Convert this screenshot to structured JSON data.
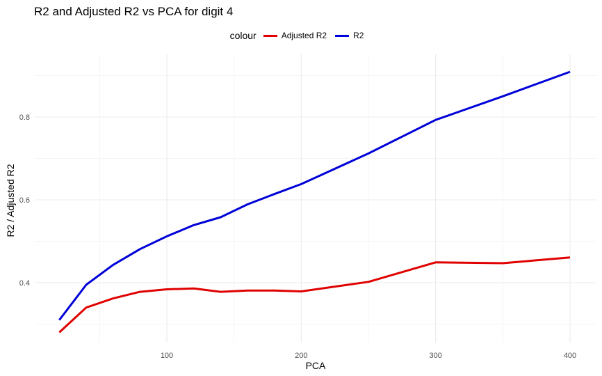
{
  "chart_data": {
    "type": "line",
    "title": "R2 and Adjusted R2 vs PCA for digit 4",
    "xlabel": "PCA",
    "ylabel": "R2 / Adjusted R2",
    "xlim": [
      20,
      400
    ],
    "ylim": [
      0.28,
      0.91
    ],
    "x_ticks": [
      100,
      200,
      300,
      400
    ],
    "y_ticks": [
      0.4,
      0.6,
      0.8
    ],
    "grid": true,
    "legend": {
      "title": "colour",
      "placement": "top"
    },
    "x": [
      20,
      40,
      60,
      80,
      100,
      120,
      140,
      160,
      180,
      200,
      250,
      300,
      350,
      400
    ],
    "series": [
      {
        "name": "Adjusted R2",
        "color": "#e00000",
        "values": [
          0.28,
          0.34,
          0.362,
          0.378,
          0.384,
          0.386,
          0.378,
          0.381,
          0.381,
          0.379,
          0.402,
          0.449,
          0.447,
          0.461
        ]
      },
      {
        "name": "R2",
        "color": "#0000d8",
        "values": [
          0.31,
          0.395,
          0.443,
          0.481,
          0.512,
          0.539,
          0.558,
          0.589,
          0.614,
          0.638,
          0.712,
          0.793,
          0.85,
          0.909
        ]
      }
    ]
  }
}
